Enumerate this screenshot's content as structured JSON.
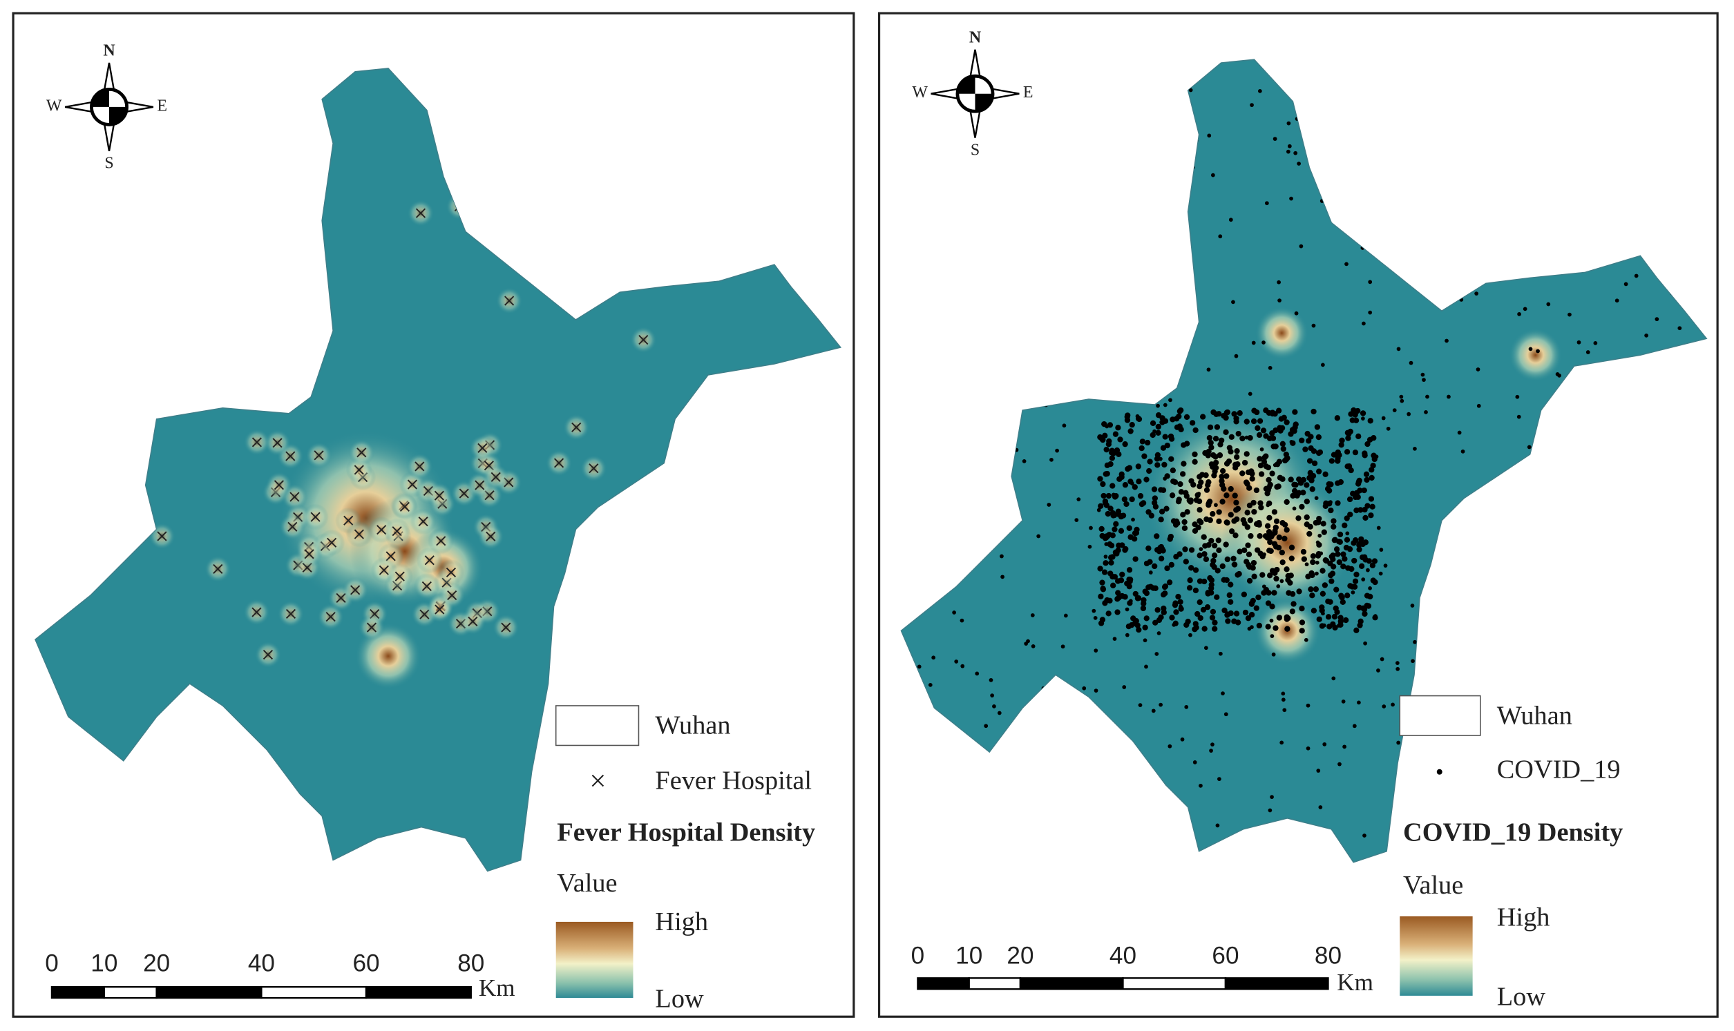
{
  "panels": [
    {
      "compass": {
        "n": "N",
        "s": "S",
        "w": "W",
        "e": "E"
      },
      "legend": {
        "boundary": "Wuhan",
        "points": "Fever Hospital",
        "density_title": "Fever Hospital Density",
        "value": "Value",
        "high": "High",
        "low": "Low"
      },
      "scale": {
        "ticks": [
          0,
          10,
          20,
          40,
          60,
          80
        ],
        "unit": "Km"
      }
    },
    {
      "compass": {
        "n": "N",
        "s": "S",
        "w": "W",
        "e": "E"
      },
      "legend": {
        "boundary": "Wuhan",
        "points": "COVID_19",
        "density_title": "COVID_19 Density",
        "value": "Value",
        "high": "High",
        "low": "Low"
      },
      "scale": {
        "ticks": [
          0,
          10,
          20,
          40,
          60,
          80
        ],
        "unit": "Km"
      }
    }
  ]
}
